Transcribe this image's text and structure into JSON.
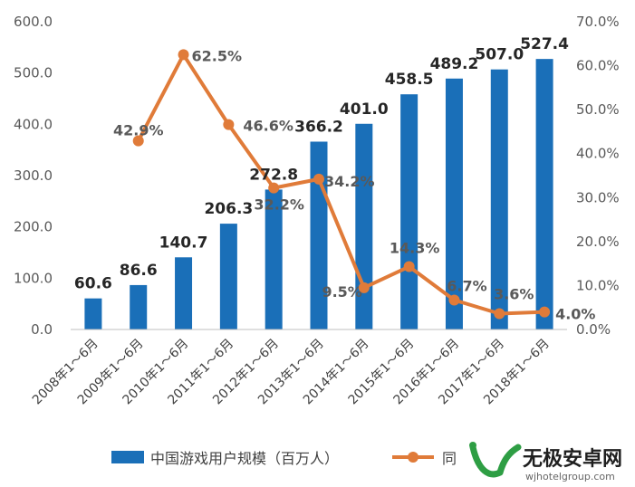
{
  "chart_data": {
    "type": "bar",
    "title": "",
    "categories": [
      "2008年1～6月",
      "2009年1～6月",
      "2010年1～6月",
      "2011年1～6月",
      "2012年1～6月",
      "2013年1～6月",
      "2014年1～6月",
      "2015年1～6月",
      "2016年1～6月",
      "2017年1～6月",
      "2018年1～6月"
    ],
    "series": [
      {
        "name": "中国游戏用户规模（百万人）",
        "type": "bar",
        "axis": "left",
        "color": "#1a6fb8",
        "values": [
          60.6,
          86.6,
          140.7,
          206.3,
          272.8,
          366.2,
          401.0,
          458.5,
          489.2,
          507.0,
          527.4
        ],
        "labels": [
          "60.6",
          "86.6",
          "140.7",
          "206.3",
          "272.8",
          "366.2",
          "401.0",
          "458.5",
          "489.2",
          "507.0",
          "527.4"
        ]
      },
      {
        "name": "同",
        "type": "line",
        "axis": "right",
        "color": "#e07b39",
        "values": [
          null,
          42.9,
          62.5,
          46.6,
          32.2,
          34.2,
          9.5,
          14.3,
          6.7,
          3.6,
          4.0
        ],
        "labels": [
          "",
          "42.9%",
          "62.5%",
          "46.6%",
          "32.2%",
          "34.2%",
          "9.5%",
          "14.3%",
          "6.7%",
          "3.6%",
          "4.0%"
        ]
      }
    ],
    "y_left": {
      "range": [
        0,
        600
      ],
      "ticks": [
        "0.0",
        "100.0",
        "200.0",
        "300.0",
        "400.0",
        "500.0",
        "600.0"
      ]
    },
    "y_right": {
      "range": [
        0,
        70
      ],
      "ticks": [
        "0.0%",
        "10.0%",
        "20.0%",
        "30.0%",
        "40.0%",
        "50.0%",
        "60.0%",
        "70.0%"
      ]
    },
    "grid": false,
    "legend_position": "bottom"
  },
  "watermark": {
    "main_text": "无极安卓网",
    "sub_text": "wjhotelgroup.com",
    "color": "#2e9e44"
  }
}
